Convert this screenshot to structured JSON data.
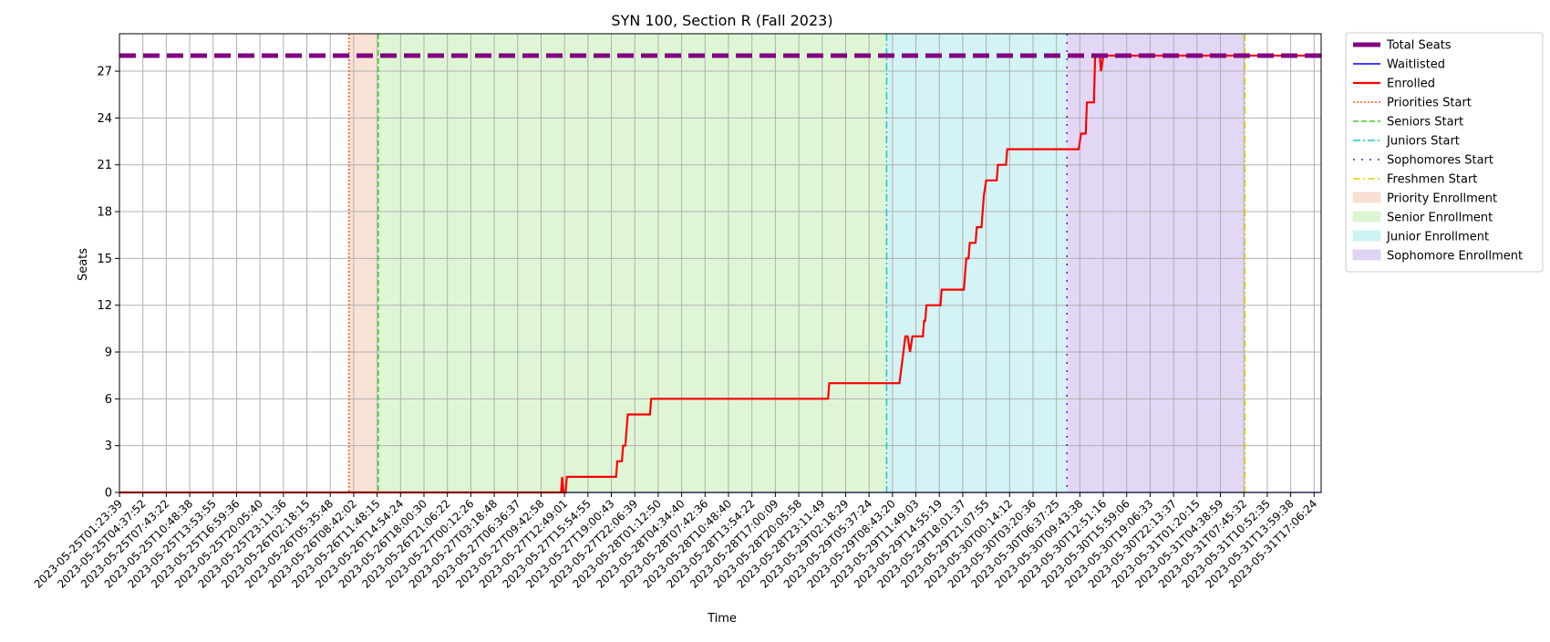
{
  "chart_data": {
    "type": "line",
    "title": "SYN 100, Section R (Fall 2023)",
    "xlabel": "Time",
    "ylabel": "Seats",
    "ylim": [
      0,
      29.4
    ],
    "yticks": [
      0,
      3,
      6,
      9,
      12,
      15,
      18,
      21,
      24,
      27
    ],
    "grid": true,
    "legend_position": "outside-right",
    "x_tick_labels": [
      "2023-05-25T01:23:39",
      "2023-05-25T04:37:52",
      "2023-05-25T07:43:22",
      "2023-05-25T10:48:38",
      "2023-05-25T13:53:55",
      "2023-05-25T16:59:36",
      "2023-05-25T20:05:40",
      "2023-05-25T23:11:36",
      "2023-05-26T02:18:15",
      "2023-05-26T05:35:48",
      "2023-05-26T08:42:02",
      "2023-05-26T11:48:15",
      "2023-05-26T14:54:24",
      "2023-05-26T18:00:30",
      "2023-05-26T21:06:22",
      "2023-05-27T00:12:26",
      "2023-05-27T03:18:48",
      "2023-05-27T06:36:37",
      "2023-05-27T09:42:58",
      "2023-05-27T12:49:01",
      "2023-05-27T15:54:55",
      "2023-05-27T19:00:43",
      "2023-05-27T22:06:39",
      "2023-05-28T01:12:50",
      "2023-05-28T04:34:40",
      "2023-05-28T07:42:36",
      "2023-05-28T10:48:40",
      "2023-05-28T13:54:22",
      "2023-05-28T17:00:09",
      "2023-05-28T20:05:58",
      "2023-05-28T23:11:49",
      "2023-05-29T02:18:29",
      "2023-05-29T05:37:24",
      "2023-05-29T08:43:20",
      "2023-05-29T11:49:03",
      "2023-05-29T14:55:19",
      "2023-05-29T18:01:37",
      "2023-05-29T21:07:55",
      "2023-05-30T00:14:12",
      "2023-05-30T03:20:36",
      "2023-05-30T06:37:25",
      "2023-05-30T09:43:38",
      "2023-05-30T12:51:16",
      "2023-05-30T15:59:06",
      "2023-05-30T19:06:33",
      "2023-05-30T22:13:37",
      "2023-05-31T01:20:15",
      "2023-05-31T04:38:59",
      "2023-05-31T07:45:32",
      "2023-05-31T10:52:35",
      "2023-05-31T13:59:38",
      "2023-05-31T17:06:24"
    ],
    "x_range": [
      0,
      51.3
    ],
    "series": [
      {
        "name": "Total Seats",
        "color": "#800080",
        "style": "dashed-thick",
        "points": [
          [
            0,
            28
          ],
          [
            51.3,
            28
          ]
        ]
      },
      {
        "name": "Waitlisted",
        "color": "#0000ff",
        "style": "solid-thin",
        "points": [
          [
            0,
            0
          ],
          [
            51.3,
            0
          ]
        ]
      },
      {
        "name": "Enrolled",
        "color": "#ff0000",
        "style": "solid",
        "points": [
          [
            0,
            0
          ],
          [
            18.85,
            0
          ],
          [
            18.9,
            1
          ],
          [
            18.95,
            0
          ],
          [
            19.05,
            0
          ],
          [
            19.1,
            1
          ],
          [
            21.2,
            1
          ],
          [
            21.25,
            2
          ],
          [
            21.45,
            2
          ],
          [
            21.5,
            3
          ],
          [
            21.6,
            3
          ],
          [
            21.7,
            5
          ],
          [
            22.65,
            5
          ],
          [
            22.7,
            6
          ],
          [
            30.25,
            6
          ],
          [
            30.3,
            7
          ],
          [
            33.3,
            7
          ],
          [
            33.55,
            10
          ],
          [
            33.65,
            10
          ],
          [
            33.75,
            9
          ],
          [
            33.85,
            10
          ],
          [
            34.3,
            10
          ],
          [
            34.35,
            11
          ],
          [
            34.4,
            11
          ],
          [
            34.45,
            12
          ],
          [
            35.05,
            12
          ],
          [
            35.1,
            13
          ],
          [
            36.05,
            13
          ],
          [
            36.15,
            15
          ],
          [
            36.25,
            15
          ],
          [
            36.3,
            16
          ],
          [
            36.55,
            16
          ],
          [
            36.6,
            17
          ],
          [
            36.8,
            17
          ],
          [
            36.9,
            19
          ],
          [
            37.0,
            20
          ],
          [
            37.45,
            20
          ],
          [
            37.5,
            21
          ],
          [
            37.85,
            21
          ],
          [
            37.9,
            22
          ],
          [
            40.95,
            22
          ],
          [
            41.05,
            23
          ],
          [
            41.25,
            23
          ],
          [
            41.3,
            25
          ],
          [
            41.6,
            25
          ],
          [
            41.65,
            28
          ],
          [
            41.85,
            28
          ],
          [
            41.9,
            27
          ],
          [
            42.0,
            28
          ],
          [
            51.3,
            28
          ]
        ]
      }
    ],
    "phase_lines": [
      {
        "name": "Priorities Start",
        "x": 9.8,
        "color": "#ff5a1f",
        "style": "dotted"
      },
      {
        "name": "Seniors Start",
        "x": 11.05,
        "color": "#44cc22",
        "style": "dashed"
      },
      {
        "name": "Juniors Start",
        "x": 32.75,
        "color": "#19c4cc",
        "style": "dashdot"
      },
      {
        "name": "Sophomores Start",
        "x": 40.45,
        "color": "#6a0ddd",
        "style": "loosely-dotted"
      },
      {
        "name": "Freshmen Start",
        "x": 48.05,
        "color": "#e6d000",
        "style": "dashdot"
      }
    ],
    "phase_spans": [
      {
        "name": "Priority Enrollment",
        "x0": 9.8,
        "x1": 11.05,
        "color": "#f8dfd2"
      },
      {
        "name": "Senior Enrollment",
        "x0": 11.05,
        "x1": 32.75,
        "color": "#dbf5d2"
      },
      {
        "name": "Junior Enrollment",
        "x0": 32.75,
        "x1": 40.45,
        "color": "#cef2f3"
      },
      {
        "name": "Sophomore Enrollment",
        "x0": 40.45,
        "x1": 48.05,
        "color": "#e0d3f5"
      }
    ],
    "legend": [
      {
        "label": "Total Seats",
        "kind": "line",
        "color": "#800080",
        "style": "dashed-thick"
      },
      {
        "label": "Waitlisted",
        "kind": "line",
        "color": "#0000ff",
        "style": "solid-thin"
      },
      {
        "label": "Enrolled",
        "kind": "line",
        "color": "#ff0000",
        "style": "solid"
      },
      {
        "label": "Priorities Start",
        "kind": "line",
        "color": "#ff5a1f",
        "style": "dotted"
      },
      {
        "label": "Seniors Start",
        "kind": "line",
        "color": "#44cc22",
        "style": "dashed"
      },
      {
        "label": "Juniors Start",
        "kind": "line",
        "color": "#19c4cc",
        "style": "dashdot"
      },
      {
        "label": "Sophomores Start",
        "kind": "line",
        "color": "#6a0ddd",
        "style": "loosely-dotted"
      },
      {
        "label": "Freshmen Start",
        "kind": "line",
        "color": "#e6d000",
        "style": "dashdot"
      },
      {
        "label": "Priority Enrollment",
        "kind": "patch",
        "color": "#f8dfd2"
      },
      {
        "label": "Senior Enrollment",
        "kind": "patch",
        "color": "#dbf5d2"
      },
      {
        "label": "Junior Enrollment",
        "kind": "patch",
        "color": "#cef2f3"
      },
      {
        "label": "Sophomore Enrollment",
        "kind": "patch",
        "color": "#e0d3f5"
      }
    ]
  }
}
